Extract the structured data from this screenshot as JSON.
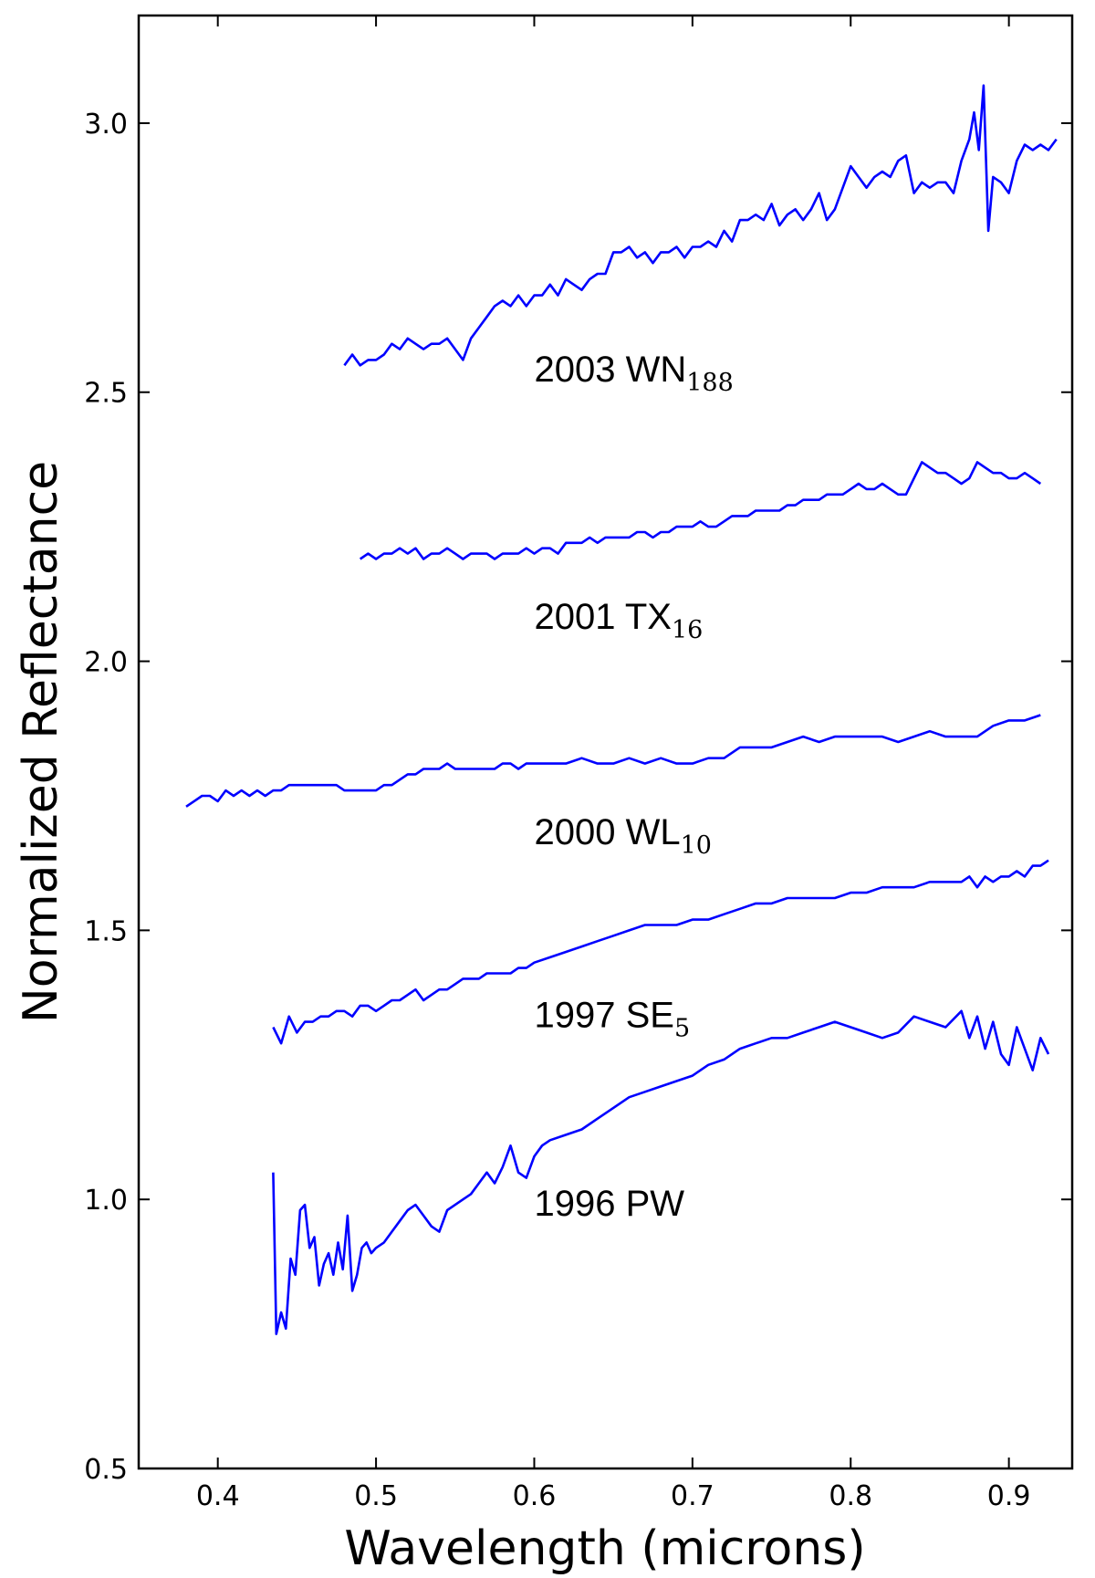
{
  "chart_data": {
    "type": "line",
    "title": "",
    "xlabel": "Wavelength (microns)",
    "ylabel": "Normalized Reflectance",
    "xlim": [
      0.35,
      0.94
    ],
    "ylim": [
      0.5,
      3.2
    ],
    "xticks": [
      0.4,
      0.5,
      0.6,
      0.7,
      0.8,
      0.9
    ],
    "xtick_labels": [
      "0.4",
      "0.5",
      "0.6",
      "0.7",
      "0.8",
      "0.9"
    ],
    "yticks": [
      0.5,
      1.0,
      1.5,
      2.0,
      2.5,
      3.0
    ],
    "ytick_labels": [
      "0.5",
      "1.0",
      "1.5",
      "2.0",
      "2.5",
      "3.0"
    ],
    "grid": false,
    "line_color": "#0000ff",
    "series": [
      {
        "name": "2003 WN188",
        "label_main": "2003 WN",
        "label_sub": "188",
        "label_at": [
          0.6,
          2.52
        ],
        "x": [
          0.48,
          0.485,
          0.49,
          0.495,
          0.5,
          0.505,
          0.51,
          0.515,
          0.52,
          0.525,
          0.53,
          0.535,
          0.54,
          0.545,
          0.55,
          0.555,
          0.56,
          0.565,
          0.57,
          0.575,
          0.58,
          0.585,
          0.59,
          0.595,
          0.6,
          0.605,
          0.61,
          0.615,
          0.62,
          0.625,
          0.63,
          0.635,
          0.64,
          0.645,
          0.65,
          0.655,
          0.66,
          0.665,
          0.67,
          0.675,
          0.68,
          0.685,
          0.69,
          0.695,
          0.7,
          0.705,
          0.71,
          0.715,
          0.72,
          0.725,
          0.73,
          0.735,
          0.74,
          0.745,
          0.75,
          0.755,
          0.76,
          0.765,
          0.77,
          0.775,
          0.78,
          0.785,
          0.79,
          0.795,
          0.8,
          0.805,
          0.81,
          0.815,
          0.82,
          0.825,
          0.83,
          0.835,
          0.84,
          0.845,
          0.85,
          0.855,
          0.86,
          0.865,
          0.87,
          0.875,
          0.878,
          0.881,
          0.884,
          0.887,
          0.89,
          0.895,
          0.9,
          0.905,
          0.91,
          0.915,
          0.92,
          0.925,
          0.93
        ],
        "y": [
          2.55,
          2.57,
          2.55,
          2.56,
          2.56,
          2.57,
          2.59,
          2.58,
          2.6,
          2.59,
          2.58,
          2.59,
          2.59,
          2.6,
          2.58,
          2.56,
          2.6,
          2.62,
          2.64,
          2.66,
          2.67,
          2.66,
          2.68,
          2.66,
          2.68,
          2.68,
          2.7,
          2.68,
          2.71,
          2.7,
          2.69,
          2.71,
          2.72,
          2.72,
          2.76,
          2.76,
          2.77,
          2.75,
          2.76,
          2.74,
          2.76,
          2.76,
          2.77,
          2.75,
          2.77,
          2.77,
          2.78,
          2.77,
          2.8,
          2.78,
          2.82,
          2.82,
          2.83,
          2.82,
          2.85,
          2.81,
          2.83,
          2.84,
          2.82,
          2.84,
          2.87,
          2.82,
          2.84,
          2.88,
          2.92,
          2.9,
          2.88,
          2.9,
          2.91,
          2.9,
          2.93,
          2.94,
          2.87,
          2.89,
          2.88,
          2.89,
          2.89,
          2.87,
          2.93,
          2.97,
          3.02,
          2.95,
          3.07,
          2.8,
          2.9,
          2.89,
          2.87,
          2.93,
          2.96,
          2.95,
          2.96,
          2.95,
          2.97
        ]
      },
      {
        "name": "2001 TX16",
        "label_main": "2001 TX",
        "label_sub": "16",
        "label_at": [
          0.6,
          2.06
        ],
        "x": [
          0.49,
          0.495,
          0.5,
          0.505,
          0.51,
          0.515,
          0.52,
          0.525,
          0.53,
          0.535,
          0.54,
          0.545,
          0.55,
          0.555,
          0.56,
          0.565,
          0.57,
          0.575,
          0.58,
          0.585,
          0.59,
          0.595,
          0.6,
          0.605,
          0.61,
          0.615,
          0.62,
          0.625,
          0.63,
          0.635,
          0.64,
          0.645,
          0.65,
          0.655,
          0.66,
          0.665,
          0.67,
          0.675,
          0.68,
          0.685,
          0.69,
          0.695,
          0.7,
          0.705,
          0.71,
          0.715,
          0.72,
          0.725,
          0.73,
          0.735,
          0.74,
          0.745,
          0.75,
          0.755,
          0.76,
          0.765,
          0.77,
          0.775,
          0.78,
          0.785,
          0.79,
          0.795,
          0.8,
          0.805,
          0.81,
          0.815,
          0.82,
          0.825,
          0.83,
          0.835,
          0.84,
          0.845,
          0.85,
          0.855,
          0.86,
          0.865,
          0.87,
          0.875,
          0.88,
          0.885,
          0.89,
          0.895,
          0.9,
          0.905,
          0.91,
          0.915,
          0.92
        ],
        "y": [
          2.19,
          2.2,
          2.19,
          2.2,
          2.2,
          2.21,
          2.2,
          2.21,
          2.19,
          2.2,
          2.2,
          2.21,
          2.2,
          2.19,
          2.2,
          2.2,
          2.2,
          2.19,
          2.2,
          2.2,
          2.2,
          2.21,
          2.2,
          2.21,
          2.21,
          2.2,
          2.22,
          2.22,
          2.22,
          2.23,
          2.22,
          2.23,
          2.23,
          2.23,
          2.23,
          2.24,
          2.24,
          2.23,
          2.24,
          2.24,
          2.25,
          2.25,
          2.25,
          2.26,
          2.25,
          2.25,
          2.26,
          2.27,
          2.27,
          2.27,
          2.28,
          2.28,
          2.28,
          2.28,
          2.29,
          2.29,
          2.3,
          2.3,
          2.3,
          2.31,
          2.31,
          2.31,
          2.32,
          2.33,
          2.32,
          2.32,
          2.33,
          2.32,
          2.31,
          2.31,
          2.34,
          2.37,
          2.36,
          2.35,
          2.35,
          2.34,
          2.33,
          2.34,
          2.37,
          2.36,
          2.35,
          2.35,
          2.34,
          2.34,
          2.35,
          2.34,
          2.33
        ]
      },
      {
        "name": "2000 WL10",
        "label_main": "2000 WL",
        "label_sub": "10",
        "label_at": [
          0.6,
          1.66
        ],
        "x": [
          0.38,
          0.385,
          0.39,
          0.395,
          0.4,
          0.405,
          0.41,
          0.415,
          0.42,
          0.425,
          0.43,
          0.435,
          0.44,
          0.445,
          0.45,
          0.455,
          0.46,
          0.465,
          0.47,
          0.475,
          0.48,
          0.485,
          0.49,
          0.495,
          0.5,
          0.505,
          0.51,
          0.515,
          0.52,
          0.525,
          0.53,
          0.535,
          0.54,
          0.545,
          0.55,
          0.555,
          0.56,
          0.565,
          0.57,
          0.575,
          0.58,
          0.585,
          0.59,
          0.595,
          0.6,
          0.61,
          0.62,
          0.63,
          0.64,
          0.65,
          0.66,
          0.67,
          0.68,
          0.69,
          0.7,
          0.71,
          0.72,
          0.73,
          0.74,
          0.75,
          0.76,
          0.77,
          0.78,
          0.79,
          0.8,
          0.81,
          0.82,
          0.83,
          0.84,
          0.85,
          0.86,
          0.87,
          0.88,
          0.89,
          0.9,
          0.91,
          0.92
        ],
        "y": [
          1.73,
          1.74,
          1.75,
          1.75,
          1.74,
          1.76,
          1.75,
          1.76,
          1.75,
          1.76,
          1.75,
          1.76,
          1.76,
          1.77,
          1.77,
          1.77,
          1.77,
          1.77,
          1.77,
          1.77,
          1.76,
          1.76,
          1.76,
          1.76,
          1.76,
          1.77,
          1.77,
          1.78,
          1.79,
          1.79,
          1.8,
          1.8,
          1.8,
          1.81,
          1.8,
          1.8,
          1.8,
          1.8,
          1.8,
          1.8,
          1.81,
          1.81,
          1.8,
          1.81,
          1.81,
          1.81,
          1.81,
          1.82,
          1.81,
          1.81,
          1.82,
          1.81,
          1.82,
          1.81,
          1.81,
          1.82,
          1.82,
          1.84,
          1.84,
          1.84,
          1.85,
          1.86,
          1.85,
          1.86,
          1.86,
          1.86,
          1.86,
          1.85,
          1.86,
          1.87,
          1.86,
          1.86,
          1.86,
          1.88,
          1.89,
          1.89,
          1.9
        ]
      },
      {
        "name": "1997 SE5",
        "label_main": "1997 SE",
        "label_sub": "5",
        "label_at": [
          0.6,
          1.32
        ],
        "x": [
          0.435,
          0.44,
          0.445,
          0.45,
          0.455,
          0.46,
          0.465,
          0.47,
          0.475,
          0.48,
          0.485,
          0.49,
          0.495,
          0.5,
          0.505,
          0.51,
          0.515,
          0.52,
          0.525,
          0.53,
          0.535,
          0.54,
          0.545,
          0.55,
          0.555,
          0.56,
          0.565,
          0.57,
          0.575,
          0.58,
          0.585,
          0.59,
          0.595,
          0.6,
          0.61,
          0.62,
          0.63,
          0.64,
          0.65,
          0.66,
          0.67,
          0.68,
          0.69,
          0.7,
          0.71,
          0.72,
          0.73,
          0.74,
          0.75,
          0.76,
          0.77,
          0.78,
          0.79,
          0.8,
          0.81,
          0.82,
          0.83,
          0.84,
          0.85,
          0.86,
          0.87,
          0.875,
          0.88,
          0.885,
          0.89,
          0.895,
          0.9,
          0.905,
          0.91,
          0.915,
          0.92,
          0.925
        ],
        "y": [
          1.32,
          1.29,
          1.34,
          1.31,
          1.33,
          1.33,
          1.34,
          1.34,
          1.35,
          1.35,
          1.34,
          1.36,
          1.36,
          1.35,
          1.36,
          1.37,
          1.37,
          1.38,
          1.39,
          1.37,
          1.38,
          1.39,
          1.39,
          1.4,
          1.41,
          1.41,
          1.41,
          1.42,
          1.42,
          1.42,
          1.42,
          1.43,
          1.43,
          1.44,
          1.45,
          1.46,
          1.47,
          1.48,
          1.49,
          1.5,
          1.51,
          1.51,
          1.51,
          1.52,
          1.52,
          1.53,
          1.54,
          1.55,
          1.55,
          1.56,
          1.56,
          1.56,
          1.56,
          1.57,
          1.57,
          1.58,
          1.58,
          1.58,
          1.59,
          1.59,
          1.59,
          1.6,
          1.58,
          1.6,
          1.59,
          1.6,
          1.6,
          1.61,
          1.6,
          1.62,
          1.62,
          1.63
        ]
      },
      {
        "name": "1996 PW",
        "label_main": "1996 PW",
        "label_sub": "",
        "label_at": [
          0.6,
          0.97
        ],
        "x": [
          0.435,
          0.437,
          0.44,
          0.443,
          0.446,
          0.449,
          0.452,
          0.455,
          0.458,
          0.461,
          0.464,
          0.467,
          0.47,
          0.473,
          0.476,
          0.479,
          0.482,
          0.485,
          0.488,
          0.491,
          0.494,
          0.497,
          0.5,
          0.505,
          0.51,
          0.515,
          0.52,
          0.525,
          0.53,
          0.535,
          0.54,
          0.545,
          0.55,
          0.555,
          0.56,
          0.565,
          0.57,
          0.575,
          0.58,
          0.585,
          0.59,
          0.595,
          0.6,
          0.605,
          0.61,
          0.62,
          0.63,
          0.64,
          0.65,
          0.66,
          0.67,
          0.68,
          0.69,
          0.7,
          0.71,
          0.72,
          0.73,
          0.74,
          0.75,
          0.76,
          0.77,
          0.78,
          0.79,
          0.8,
          0.81,
          0.82,
          0.83,
          0.84,
          0.85,
          0.86,
          0.87,
          0.875,
          0.88,
          0.885,
          0.89,
          0.895,
          0.9,
          0.905,
          0.91,
          0.915,
          0.92,
          0.925
        ],
        "y": [
          1.05,
          0.75,
          0.79,
          0.76,
          0.89,
          0.86,
          0.98,
          0.99,
          0.91,
          0.93,
          0.84,
          0.88,
          0.9,
          0.86,
          0.92,
          0.87,
          0.97,
          0.83,
          0.86,
          0.91,
          0.92,
          0.9,
          0.91,
          0.92,
          0.94,
          0.96,
          0.98,
          0.99,
          0.97,
          0.95,
          0.94,
          0.98,
          0.99,
          1.0,
          1.01,
          1.03,
          1.05,
          1.03,
          1.06,
          1.1,
          1.05,
          1.04,
          1.08,
          1.1,
          1.11,
          1.12,
          1.13,
          1.15,
          1.17,
          1.19,
          1.2,
          1.21,
          1.22,
          1.23,
          1.25,
          1.26,
          1.28,
          1.29,
          1.3,
          1.3,
          1.31,
          1.32,
          1.33,
          1.32,
          1.31,
          1.3,
          1.31,
          1.34,
          1.33,
          1.32,
          1.35,
          1.3,
          1.34,
          1.28,
          1.33,
          1.27,
          1.25,
          1.32,
          1.28,
          1.24,
          1.3,
          1.27
        ]
      }
    ]
  }
}
